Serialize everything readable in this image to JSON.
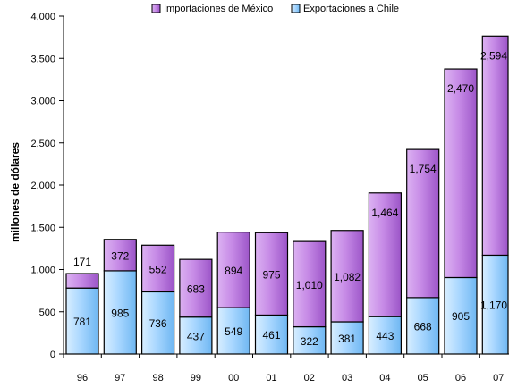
{
  "chart_data": {
    "type": "bar",
    "stacked": true,
    "categories": [
      "96",
      "97",
      "98",
      "99",
      "00",
      "01",
      "02",
      "03",
      "04",
      "05",
      "06",
      "07"
    ],
    "series": [
      {
        "name": "Exportaciones a Chile",
        "values": [
          781,
          985,
          736,
          437,
          549,
          461,
          322,
          381,
          443,
          668,
          905,
          1170
        ],
        "labels": [
          "781",
          "985",
          "736",
          "437",
          "549",
          "461",
          "322",
          "381",
          "443",
          "668",
          "905",
          "1,170"
        ],
        "color": "#a9d7ff"
      },
      {
        "name": "Importaciones de México",
        "values": [
          171,
          372,
          552,
          683,
          894,
          975,
          1010,
          1082,
          1464,
          1754,
          2470,
          2594
        ],
        "labels": [
          "171",
          "372",
          "552",
          "683",
          "894",
          "975",
          "1,010",
          "1,082",
          "1,464",
          "1,754",
          "2,470",
          "2,594"
        ],
        "color": "#c68ae6"
      }
    ],
    "ylabel": "millones de dólares",
    "ylim": [
      0,
      4000
    ],
    "yticks": [
      "0",
      "500",
      "1,000",
      "1,500",
      "2,000",
      "2,500",
      "3,000",
      "3,500",
      "4,000"
    ],
    "legend": [
      "Importaciones de México",
      "Exportaciones a Chile"
    ],
    "legend_position": "top"
  }
}
